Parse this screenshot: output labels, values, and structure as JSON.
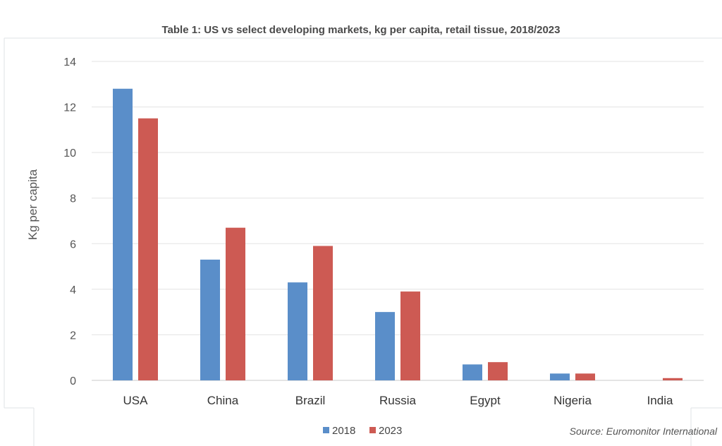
{
  "chart_data": {
    "type": "bar",
    "title": "Table 1: US vs select developing markets, kg per capita, retail tissue, 2018/2023",
    "ylabel": "Kg per capita",
    "xlabel": "",
    "ylim": [
      0,
      14
    ],
    "yticks": [
      0,
      2,
      4,
      6,
      8,
      10,
      12,
      14
    ],
    "grid": true,
    "legend_position": "bottom-center",
    "categories": [
      "USA",
      "China",
      "Brazil",
      "Russia",
      "Egypt",
      "Nigeria",
      "India"
    ],
    "series": [
      {
        "name": "2018",
        "color": "#5a8ec9",
        "values": [
          12.8,
          5.3,
          4.3,
          3.0,
          0.7,
          0.3,
          0.0
        ]
      },
      {
        "name": "2023",
        "color": "#cd5a53",
        "values": [
          11.5,
          6.7,
          5.9,
          3.9,
          0.8,
          0.3,
          0.1
        ]
      }
    ],
    "source": "Source: Euromonitor International"
  }
}
